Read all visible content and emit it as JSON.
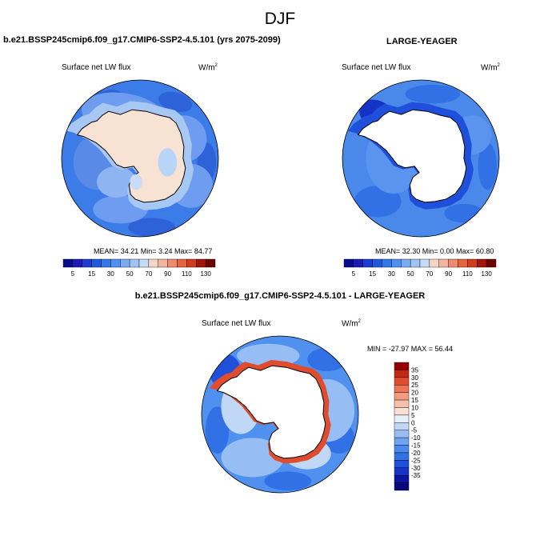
{
  "figure": {
    "title": "DJF"
  },
  "panels": [
    {
      "title": "b.e21.BSSP245cmip6.f09_g17.CMIP6-SSP2-4.5.101 (yrs 2075-2099)",
      "variable": "Surface net LW flux",
      "units_base": "W/m",
      "units_exp": "2",
      "stats": "MEAN=  34.21  Min=   3.24  Max=  84.77",
      "colorbar_labels": [
        "5",
        "15",
        "30",
        "50",
        "70",
        "90",
        "110",
        "130"
      ]
    },
    {
      "title": "LARGE-YEAGER",
      "variable": "Surface net LW flux",
      "units_base": "W/m",
      "units_exp": "2",
      "stats": "MEAN=  32.30  Min=   0.00  Max=  60.80",
      "colorbar_labels": [
        "5",
        "15",
        "30",
        "50",
        "70",
        "90",
        "110",
        "130"
      ]
    },
    {
      "title": "b.e21.BSSP245cmip6.f09_g17.CMIP6-SSP2-4.5.101 - LARGE-YEAGER",
      "variable": "Surface net LW flux",
      "units_base": "W/m",
      "units_exp": "2",
      "stats": "MIN = -27.97 MAX =  56.44",
      "colorbar_labels": [
        "35",
        "30",
        "25",
        "20",
        "15",
        "10",
        "5",
        "0",
        "-5",
        "-10",
        "-15",
        "-20",
        "-25",
        "-30",
        "-35"
      ]
    }
  ],
  "chart_data": [
    {
      "type": "heatmap",
      "title": "b.e21.BSSP245cmip6.f09_g17.CMIP6-SSP2-4.5.101 (yrs 2075-2099)",
      "variable": "Surface net LW flux",
      "units": "W/m2",
      "projection": "south polar stereographic",
      "mean": 34.21,
      "min": 3.24,
      "max": 84.77,
      "levels": [
        5,
        10,
        15,
        20,
        30,
        40,
        50,
        60,
        70,
        80,
        90,
        100,
        110,
        120,
        130
      ],
      "colors": [
        "#0a0a8c",
        "#1a1ab4",
        "#1e3ccd",
        "#1e5adc",
        "#3278e6",
        "#5090f0",
        "#7aaaf2",
        "#a0c4f4",
        "#c4dcf6",
        "#f4d6c6",
        "#f4b4a0",
        "#f08c6e",
        "#e6643e",
        "#d03c1e",
        "#a0140a",
        "#6e0000"
      ]
    },
    {
      "type": "heatmap",
      "title": "LARGE-YEAGER",
      "variable": "Surface net LW flux",
      "units": "W/m2",
      "projection": "south polar stereographic",
      "mean": 32.3,
      "min": 0.0,
      "max": 60.8,
      "levels": [
        5,
        10,
        15,
        20,
        30,
        40,
        50,
        60,
        70,
        80,
        90,
        100,
        110,
        120,
        130
      ],
      "colors": [
        "#0a0a8c",
        "#1a1ab4",
        "#1e3ccd",
        "#1e5adc",
        "#3278e6",
        "#5090f0",
        "#7aaaf2",
        "#a0c4f4",
        "#c4dcf6",
        "#f4d6c6",
        "#f4b4a0",
        "#f08c6e",
        "#e6643e",
        "#d03c1e",
        "#a0140a",
        "#6e0000"
      ]
    },
    {
      "type": "heatmap",
      "title": "b.e21.BSSP245cmip6.f09_g17.CMIP6-SSP2-4.5.101 - LARGE-YEAGER",
      "variable": "Surface net LW flux",
      "units": "W/m2",
      "projection": "south polar stereographic",
      "min": -27.97,
      "max": 56.44,
      "levels": [
        -35,
        -30,
        -25,
        -20,
        -15,
        -10,
        -5,
        0,
        5,
        10,
        15,
        20,
        25,
        30,
        35
      ],
      "colors": [
        "#08087a",
        "#0c14a6",
        "#1434c8",
        "#1e50dc",
        "#3270e6",
        "#4a8af0",
        "#6ea4f2",
        "#96bef4",
        "#c0d8f6",
        "#e6eefa",
        "#fae0d4",
        "#f6c0aa",
        "#f29c80",
        "#ec7656",
        "#e04c2e",
        "#c42814",
        "#960000"
      ]
    }
  ]
}
